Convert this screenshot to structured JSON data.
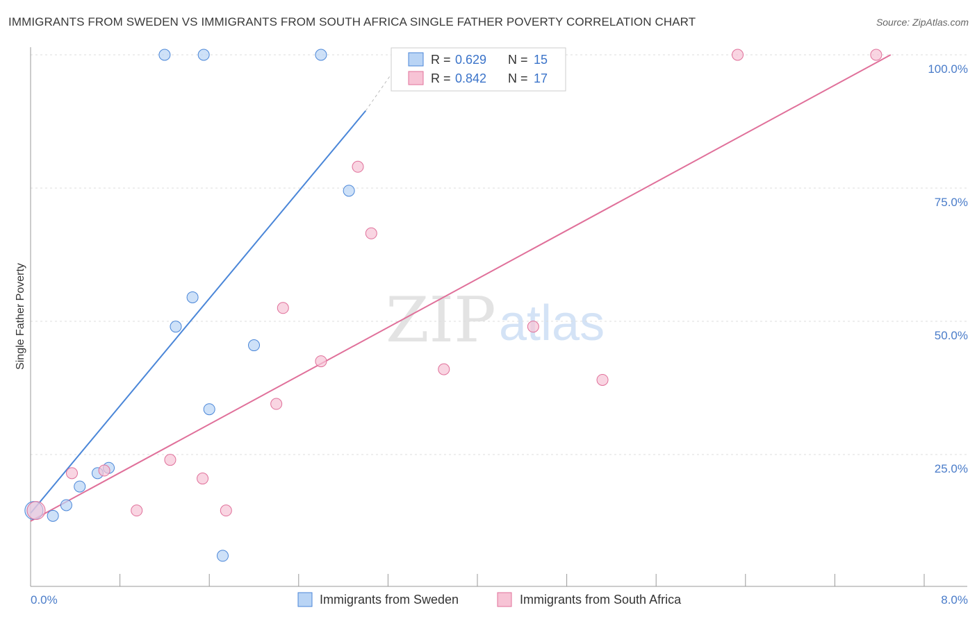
{
  "header": {
    "title": "IMMIGRANTS FROM SWEDEN VS IMMIGRANTS FROM SOUTH AFRICA SINGLE FATHER POVERTY CORRELATION CHART",
    "source": "Source: ZipAtlas.com"
  },
  "watermark": {
    "zip": "ZIP",
    "atlas": "atlas"
  },
  "chart_data": {
    "type": "scatter",
    "title": "IMMIGRANTS FROM SWEDEN VS IMMIGRANTS FROM SOUTH AFRICA SINGLE FATHER POVERTY CORRELATION CHART",
    "xlabel": "",
    "ylabel": "Single Father Poverty",
    "xlim": [
      0,
      8
    ],
    "ylim": [
      0,
      103
    ],
    "x_tick_labels": {
      "min": "0.0%",
      "max": "8.0%"
    },
    "y_ticks": [
      25,
      50,
      75,
      100
    ],
    "y_tick_labels": [
      "25.0%",
      "50.0%",
      "75.0%",
      "100.0%"
    ],
    "legend_position": "top-center",
    "series": [
      {
        "name": "Immigrants from Sweden",
        "color": "#4a86d8",
        "fill": "#b9d4f5",
        "r_label": "R =",
        "r_value": "0.629",
        "n_label": "N =",
        "n_value": "15",
        "points": [
          {
            "x": 0.03,
            "y": 14.5
          },
          {
            "x": 0.2,
            "y": 13.5
          },
          {
            "x": 0.32,
            "y": 15.5
          },
          {
            "x": 0.44,
            "y": 19
          },
          {
            "x": 0.6,
            "y": 21.5
          },
          {
            "x": 0.7,
            "y": 22.5
          },
          {
            "x": 1.2,
            "y": 100
          },
          {
            "x": 1.3,
            "y": 49
          },
          {
            "x": 1.45,
            "y": 54.5
          },
          {
            "x": 1.55,
            "y": 100
          },
          {
            "x": 1.6,
            "y": 33.5
          },
          {
            "x": 1.72,
            "y": 6
          },
          {
            "x": 2.0,
            "y": 45.5
          },
          {
            "x": 2.6,
            "y": 100
          },
          {
            "x": 2.85,
            "y": 74.5
          }
        ],
        "trend": {
          "x0": 0.0,
          "y0": 14.0,
          "x1": 3.0,
          "y1": 89.5,
          "dash_x1": 3.35,
          "dash_y1": 100.0
        }
      },
      {
        "name": "Immigrants from South Africa",
        "color": "#e0709a",
        "fill": "#f7c3d5",
        "r_label": "R =",
        "r_value": "0.842",
        "n_label": "N =",
        "n_value": "17",
        "points": [
          {
            "x": 0.05,
            "y": 14.5
          },
          {
            "x": 0.37,
            "y": 21.5
          },
          {
            "x": 0.66,
            "y": 22
          },
          {
            "x": 0.95,
            "y": 14.5
          },
          {
            "x": 1.25,
            "y": 24
          },
          {
            "x": 1.54,
            "y": 20.5
          },
          {
            "x": 1.75,
            "y": 14.5
          },
          {
            "x": 2.2,
            "y": 34.5
          },
          {
            "x": 2.26,
            "y": 52.5
          },
          {
            "x": 2.6,
            "y": 42.5
          },
          {
            "x": 2.93,
            "y": 79
          },
          {
            "x": 3.05,
            "y": 66.5
          },
          {
            "x": 3.7,
            "y": 41
          },
          {
            "x": 4.5,
            "y": 49
          },
          {
            "x": 5.12,
            "y": 39
          },
          {
            "x": 6.33,
            "y": 100
          },
          {
            "x": 7.57,
            "y": 100
          }
        ],
        "trend": {
          "x0": 0.0,
          "y0": 12.5,
          "x1": 7.7,
          "y1": 100.0
        }
      }
    ]
  }
}
